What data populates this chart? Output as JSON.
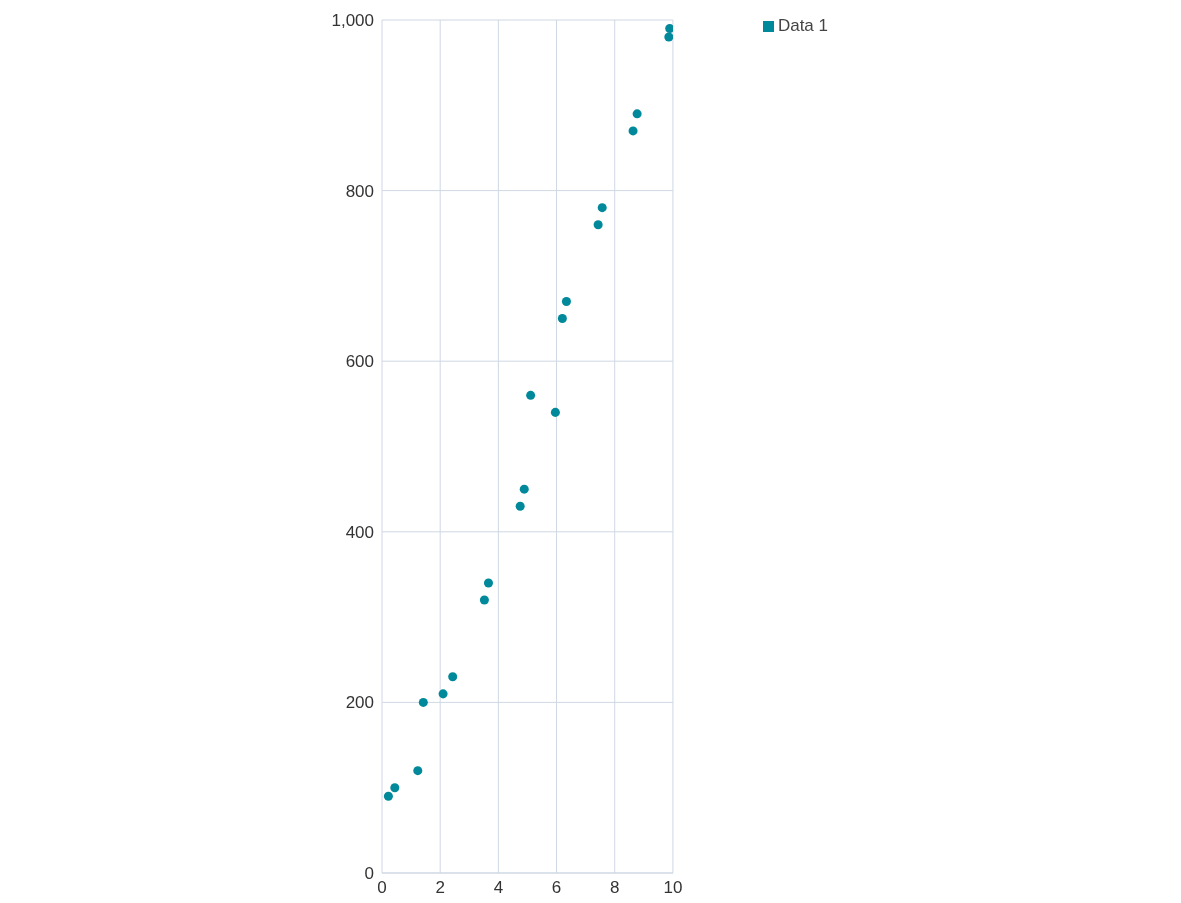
{
  "chart_data": {
    "type": "scatter",
    "xlim": [
      0,
      10
    ],
    "xticks": [
      0,
      2,
      4,
      6,
      8,
      10
    ],
    "ylim": [
      0,
      1000
    ],
    "yticks": [
      0,
      200,
      400,
      600,
      800,
      {
        "value": 1000,
        "label": "1,000"
      }
    ],
    "grid": true,
    "legend": "top right",
    "marker": "circle",
    "series": [
      {
        "name": "Data 1",
        "color": "#00899a",
        "x": [
          0.22,
          0.44,
          1.23,
          1.42,
          2.1,
          2.43,
          3.52,
          3.66,
          4.75,
          4.89,
          5.11,
          5.96,
          6.2,
          6.34,
          7.43,
          7.57,
          8.63,
          8.77,
          9.86,
          9.89
        ],
        "values": [
          90,
          100,
          120,
          200,
          210,
          230,
          320,
          340,
          430,
          450,
          560,
          540,
          650,
          670,
          760,
          780,
          870,
          890,
          980,
          990
        ]
      }
    ]
  }
}
